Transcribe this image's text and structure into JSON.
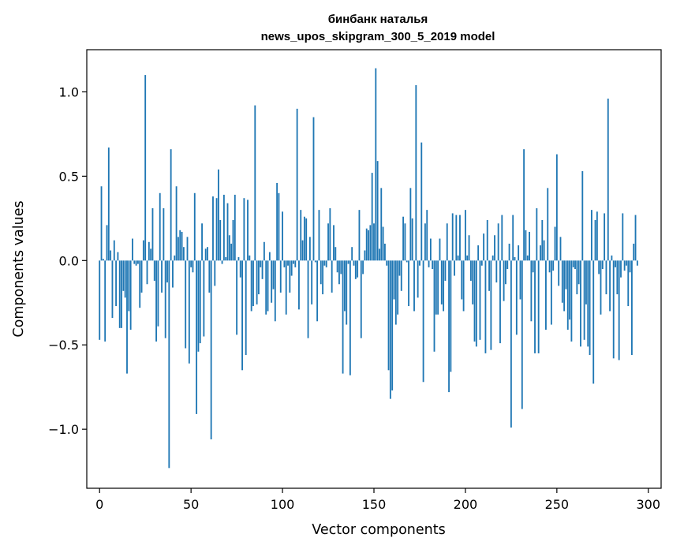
{
  "chart_data": {
    "type": "bar",
    "title": "бинбанк наталья",
    "subtitle": "news_upos_skipgram_300_5_2019 model",
    "xlabel": "Vector components",
    "ylabel": "Components values",
    "xlim": [
      -7,
      307
    ],
    "ylim": [
      -1.35,
      1.25
    ],
    "grid": false,
    "color": "#1f77b4",
    "x_ticks": [
      {
        "value": 0,
        "label": "0"
      },
      {
        "value": 50,
        "label": "50"
      },
      {
        "value": 100,
        "label": "100"
      },
      {
        "value": 150,
        "label": "150"
      },
      {
        "value": 200,
        "label": "200"
      },
      {
        "value": 250,
        "label": "250"
      },
      {
        "value": 300,
        "label": "300"
      }
    ],
    "y_ticks": [
      {
        "value": -1.0,
        "label": "−1.0"
      },
      {
        "value": -0.5,
        "label": "−0.5"
      },
      {
        "value": 0.0,
        "label": "0.0"
      },
      {
        "value": 0.5,
        "label": "0.5"
      },
      {
        "value": 1.0,
        "label": "1.0"
      }
    ],
    "values": [
      -0.47,
      0.44,
      0.01,
      -0.48,
      0.21,
      0.67,
      0.06,
      -0.34,
      0.12,
      -0.27,
      0.05,
      -0.4,
      -0.4,
      -0.18,
      -0.22,
      -0.67,
      -0.3,
      -0.41,
      0.13,
      -0.02,
      -0.03,
      -0.02,
      -0.28,
      -0.19,
      0.12,
      1.1,
      -0.14,
      0.11,
      0.07,
      0.31,
      -0.12,
      -0.48,
      -0.39,
      0.4,
      -0.19,
      0.31,
      -0.46,
      -0.13,
      -1.23,
      0.66,
      -0.16,
      0.03,
      0.44,
      0.14,
      0.18,
      0.17,
      0.08,
      -0.52,
      0.14,
      -0.61,
      -0.04,
      -0.07,
      0.4,
      -0.91,
      -0.54,
      -0.49,
      0.22,
      -0.45,
      0.07,
      0.08,
      -0.19,
      -1.06,
      0.38,
      -0.15,
      0.37,
      0.54,
      0.24,
      -0.02,
      0.39,
      0.02,
      0.34,
      0.15,
      0.1,
      0.24,
      0.39,
      -0.44,
      0.02,
      -0.1,
      -0.65,
      0.37,
      -0.56,
      0.36,
      0.03,
      -0.3,
      -0.27,
      0.92,
      -0.26,
      -0.2,
      -0.04,
      -0.11,
      0.11,
      -0.32,
      -0.3,
      0.05,
      -0.25,
      -0.17,
      -0.36,
      0.46,
      0.4,
      -0.19,
      0.29,
      -0.04,
      -0.32,
      -0.03,
      -0.19,
      -0.09,
      -0.02,
      -0.04,
      0.9,
      -0.29,
      0.3,
      0.12,
      0.26,
      0.25,
      -0.46,
      0.14,
      -0.26,
      0.85,
      -0.01,
      -0.36,
      0.3,
      -0.14,
      -0.2,
      -0.03,
      -0.04,
      0.22,
      0.31,
      -0.19,
      0.21,
      0.08,
      -0.07,
      -0.14,
      -0.08,
      -0.67,
      -0.3,
      -0.38,
      -0.02,
      -0.68,
      0.08,
      -0.03,
      -0.11,
      -0.1,
      0.3,
      -0.46,
      -0.08,
      0.06,
      0.19,
      0.18,
      0.21,
      0.52,
      0.22,
      1.14,
      0.59,
      0.07,
      0.43,
      0.2,
      0.1,
      -0.03,
      -0.65,
      -0.82,
      -0.77,
      -0.23,
      -0.38,
      -0.32,
      -0.09,
      -0.18,
      0.26,
      0.22,
      -0.01,
      -0.27,
      0.43,
      0.25,
      -0.3,
      1.04,
      -0.22,
      -0.03,
      0.7,
      -0.72,
      0.22,
      0.3,
      -0.04,
      0.13,
      -0.05,
      -0.54,
      -0.32,
      -0.32,
      0.13,
      -0.26,
      -0.3,
      -0.12,
      0.22,
      -0.78,
      -0.66,
      0.28,
      -0.09,
      0.27,
      0.03,
      0.27,
      -0.23,
      -0.3,
      0.3,
      0.03,
      0.15,
      -0.12,
      -0.26,
      -0.48,
      -0.51,
      0.09,
      -0.47,
      -0.03,
      0.16,
      -0.55,
      0.24,
      -0.18,
      -0.53,
      0.03,
      0.15,
      -0.13,
      0.22,
      -0.49,
      0.27,
      -0.24,
      -0.14,
      -0.05,
      0.1,
      -0.99,
      0.27,
      0.02,
      -0.44,
      0.09,
      -0.23,
      -0.88,
      0.66,
      0.18,
      0.03,
      0.17,
      -0.36,
      -0.07,
      -0.55,
      0.31,
      -0.55,
      0.09,
      0.24,
      0.12,
      -0.41,
      0.43,
      -0.07,
      -0.38,
      -0.06,
      0.2,
      0.63,
      -0.15,
      0.14,
      -0.25,
      -0.3,
      -0.17,
      -0.41,
      -0.35,
      -0.48,
      -0.04,
      -0.05,
      -0.2,
      -0.14,
      -0.51,
      0.53,
      -0.47,
      -0.26,
      -0.51,
      -0.56,
      0.3,
      -0.73,
      0.24,
      0.29,
      -0.08,
      -0.32,
      -0.05,
      0.28,
      -0.2,
      0.96,
      -0.3,
      0.03,
      -0.58,
      -0.04,
      -0.2,
      -0.59,
      -0.1,
      0.28,
      -0.06,
      -0.03,
      -0.27,
      -0.07,
      -0.56,
      0.1,
      0.27,
      -0.03
    ]
  }
}
